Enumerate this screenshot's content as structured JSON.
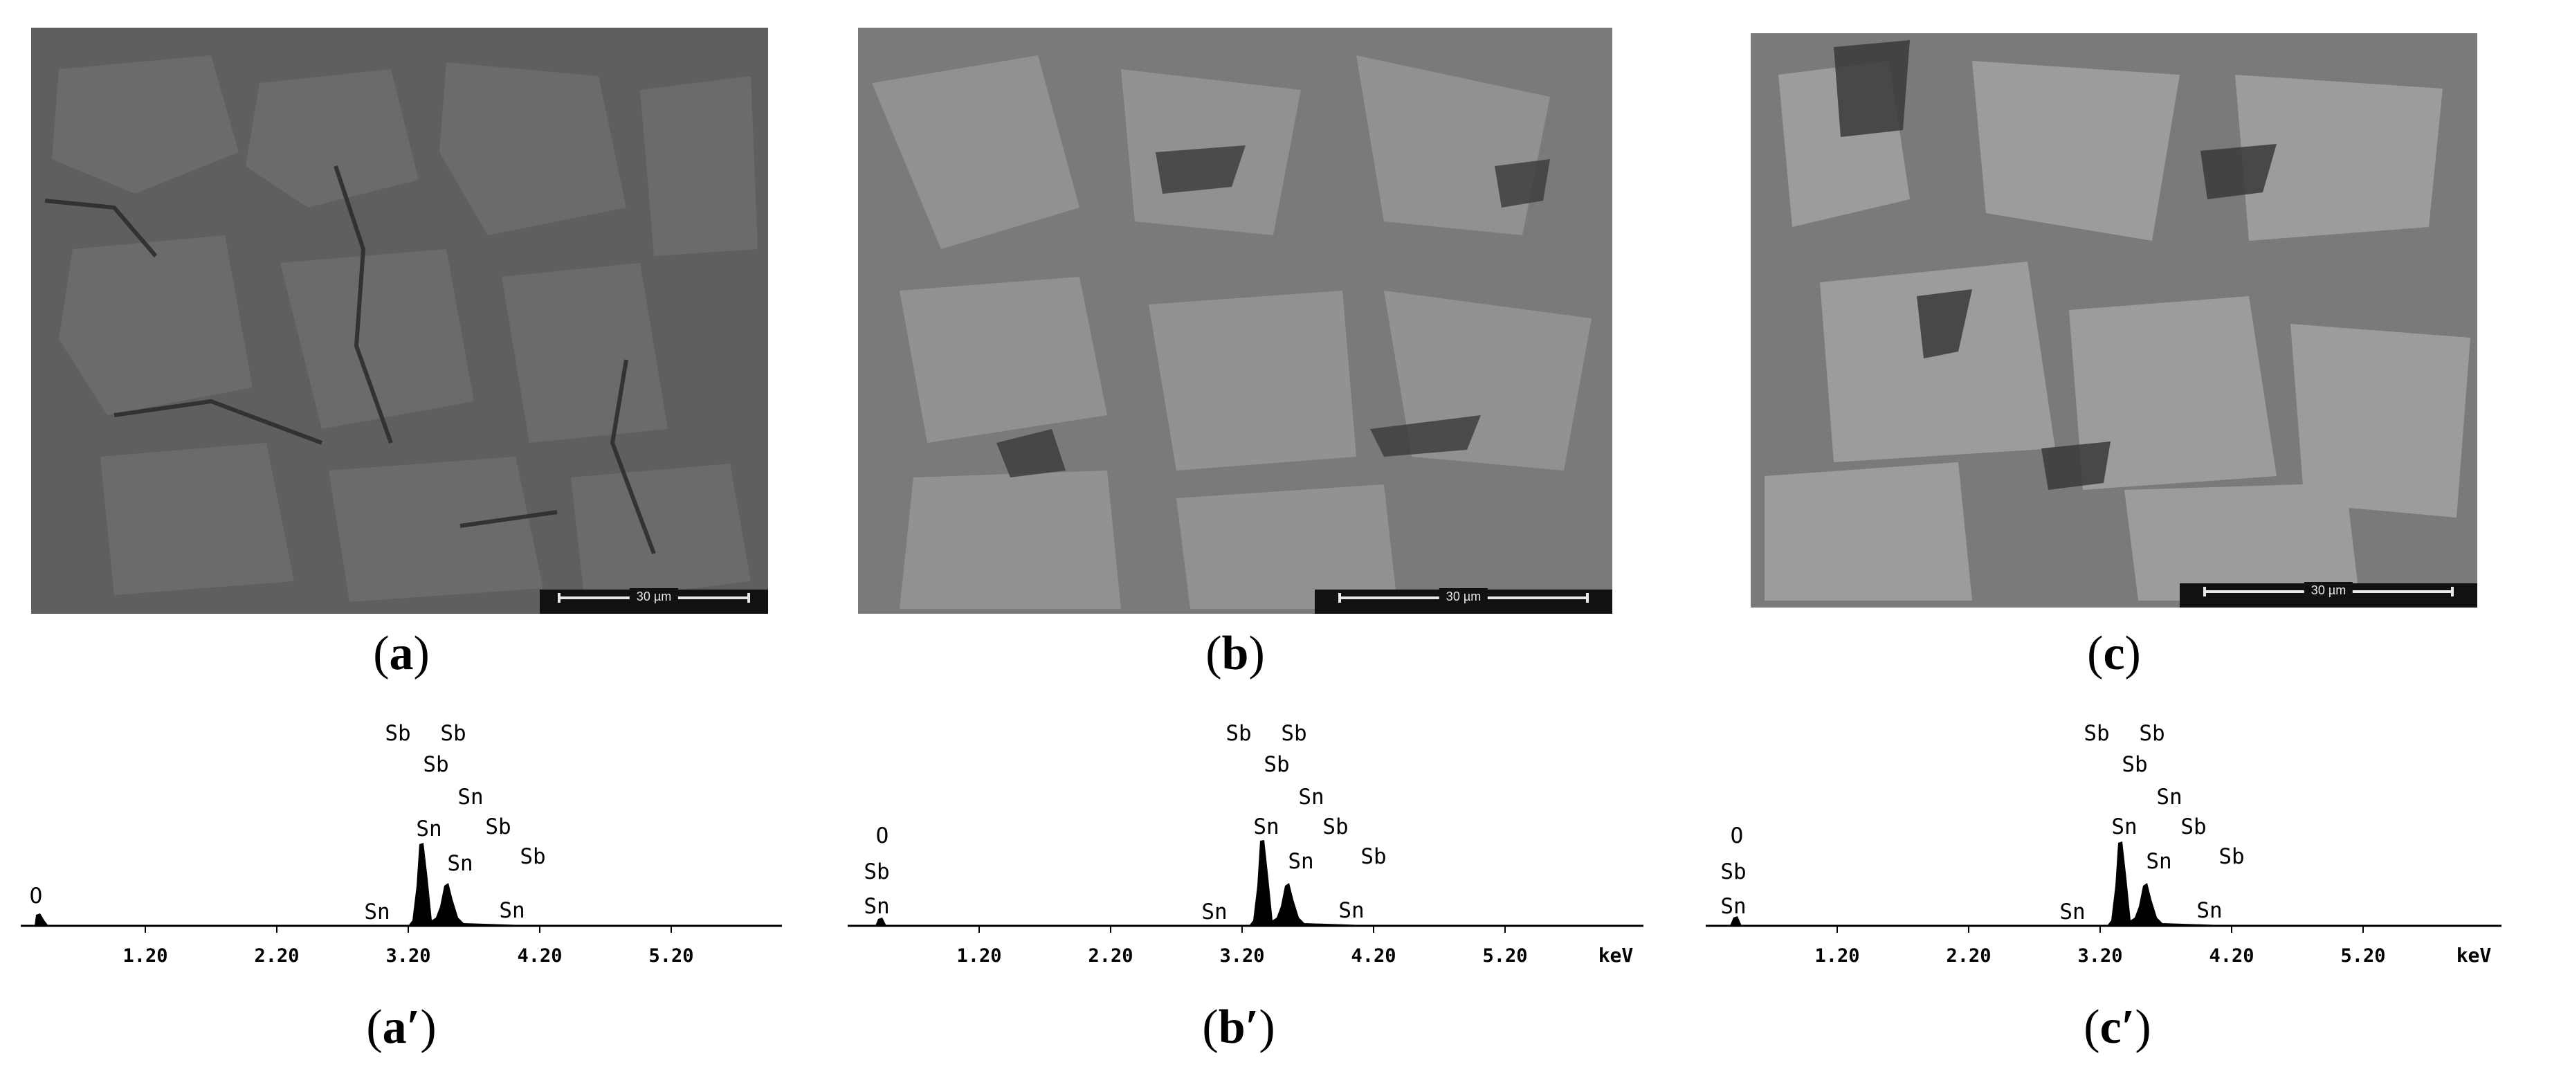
{
  "panels": [
    {
      "caption_letter": "a",
      "scale_label": "30 µm"
    },
    {
      "caption_letter": "b",
      "scale_label": "30 µm"
    },
    {
      "caption_letter": "c",
      "scale_label": "30 µm"
    }
  ],
  "spectra": [
    {
      "caption_letter": "a′",
      "ticks": [
        "1.20",
        "2.20",
        "3.20",
        "4.20",
        "5.20"
      ],
      "unit": "",
      "labels": [
        "O",
        "Sn",
        "Sn",
        "Sn",
        "Sn",
        "Sb",
        "Sb",
        "Sb",
        "Sb",
        "Sb",
        "Sn"
      ]
    },
    {
      "caption_letter": "b′",
      "ticks": [
        "1.20",
        "2.20",
        "3.20",
        "4.20",
        "5.20"
      ],
      "unit": "keV",
      "labels": [
        "O",
        "Sb",
        "Sn",
        "Sn",
        "Sn",
        "Sn",
        "Sn",
        "Sb",
        "Sb",
        "Sb",
        "Sb",
        "Sb",
        "Sn"
      ]
    },
    {
      "caption_letter": "c′",
      "ticks": [
        "1.20",
        "2.20",
        "3.20",
        "4.20",
        "5.20"
      ],
      "unit": "keV",
      "labels": [
        "O",
        "Sb",
        "Sn",
        "Sn",
        "Sn",
        "Sn",
        "Sn",
        "Sb",
        "Sb",
        "Sb",
        "Sb",
        "Sb",
        "Sn"
      ]
    }
  ],
  "colors": {
    "sem_dark": "#5e5e5e",
    "sem_light": "#7a7a7a",
    "spectrum": "#000000"
  }
}
